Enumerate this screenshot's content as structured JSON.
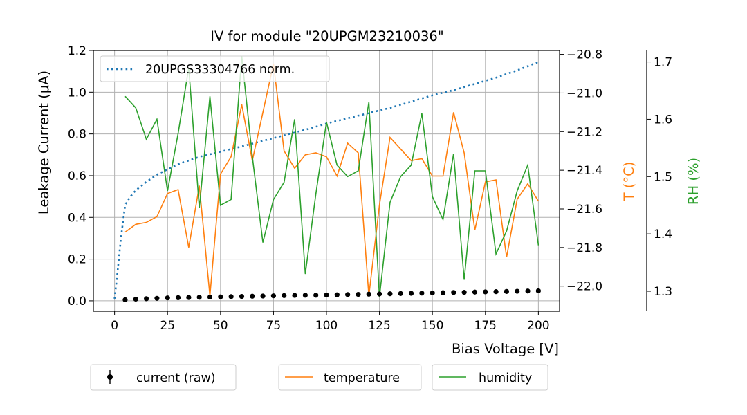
{
  "chart_data": {
    "type": "line",
    "title": "IV for module \"20UPGM23210036\"",
    "xlabel": "Bias Voltage [V]",
    "ylabel": "Leakage Current (μA)",
    "ylabel_temperature": "T (°C)",
    "ylabel_humidity": "RH (%)",
    "xlim": [
      -10,
      210
    ],
    "ylim": [
      -0.05,
      1.2
    ],
    "ylim_temperature": [
      -22.13,
      -20.78
    ],
    "ylim_humidity": [
      1.265,
      1.72
    ],
    "x_ticks": [
      0,
      25,
      50,
      75,
      100,
      125,
      150,
      175,
      200
    ],
    "y_ticks": [
      0.0,
      0.2,
      0.4,
      0.6,
      0.8,
      1.0,
      1.2
    ],
    "y_ticks_temperature": [
      -22.0,
      -21.8,
      -21.6,
      -21.4,
      -21.2,
      -21.0,
      -20.8
    ],
    "y_ticks_humidity": [
      1.3,
      1.4,
      1.5,
      1.6,
      1.7
    ],
    "x_tick_labels": [
      "0",
      "25",
      "50",
      "75",
      "100",
      "125",
      "150",
      "175",
      "200"
    ],
    "y_tick_labels": [
      "0.0",
      "0.2",
      "0.4",
      "0.6",
      "0.8",
      "1.0",
      "1.2"
    ],
    "y_tick_labels_temperature": [
      "−22.0",
      "−21.8",
      "−21.6",
      "−21.4",
      "−21.2",
      "−21.0",
      "−20.8"
    ],
    "y_tick_labels_humidity": [
      "1.3",
      "1.4",
      "1.5",
      "1.6",
      "1.7"
    ],
    "grid": true,
    "series": [
      {
        "name": "20UPGS33304766 norm.",
        "axis": "left",
        "style": "dotted",
        "color": "#1f77b4",
        "x": [
          0,
          1,
          2,
          3,
          4,
          5,
          7.5,
          10,
          15,
          20,
          25,
          30,
          40,
          50,
          60,
          75,
          90,
          100,
          110,
          120,
          130,
          140,
          150,
          160,
          170,
          180,
          190,
          200
        ],
        "y": [
          0.01,
          0.1,
          0.2,
          0.3,
          0.38,
          0.46,
          0.5,
          0.53,
          0.57,
          0.605,
          0.63,
          0.655,
          0.69,
          0.715,
          0.74,
          0.78,
          0.82,
          0.85,
          0.875,
          0.9,
          0.925,
          0.955,
          0.985,
          1.01,
          1.04,
          1.07,
          1.105,
          1.145
        ]
      },
      {
        "name": "current (raw)",
        "axis": "left",
        "style": "points",
        "color": "#000000",
        "x": [
          5,
          10,
          15,
          20,
          25,
          30,
          35,
          40,
          45,
          50,
          55,
          60,
          65,
          70,
          75,
          80,
          85,
          90,
          95,
          100,
          105,
          110,
          115,
          120,
          125,
          130,
          135,
          140,
          145,
          150,
          155,
          160,
          165,
          170,
          175,
          180,
          185,
          190,
          195,
          200
        ],
        "y": [
          0.005,
          0.008,
          0.01,
          0.012,
          0.014,
          0.015,
          0.016,
          0.017,
          0.018,
          0.019,
          0.02,
          0.021,
          0.022,
          0.023,
          0.024,
          0.025,
          0.026,
          0.027,
          0.027,
          0.028,
          0.029,
          0.03,
          0.031,
          0.032,
          0.033,
          0.034,
          0.035,
          0.036,
          0.037,
          0.038,
          0.039,
          0.04,
          0.041,
          0.042,
          0.043,
          0.044,
          0.045,
          0.046,
          0.047,
          0.048
        ]
      },
      {
        "name": "temperature",
        "axis": "temperature",
        "style": "solid",
        "color": "#ff7f0e",
        "x": [
          5,
          10,
          15,
          20,
          25,
          30,
          35,
          40,
          45,
          50,
          55,
          60,
          65,
          70,
          75,
          80,
          85,
          90,
          95,
          100,
          105,
          110,
          115,
          120,
          125,
          130,
          135,
          140,
          145,
          150,
          155,
          160,
          165,
          170,
          175,
          180,
          185,
          190,
          195,
          200
        ],
        "y": [
          -21.72,
          -21.68,
          -21.67,
          -21.64,
          -21.52,
          -21.5,
          -21.8,
          -21.48,
          -22.05,
          -21.42,
          -21.33,
          -21.06,
          -21.35,
          -21.1,
          -20.85,
          -21.3,
          -21.39,
          -21.32,
          -21.31,
          -21.33,
          -21.43,
          -21.26,
          -21.31,
          -22.05,
          -21.58,
          -21.23,
          -21.29,
          -21.35,
          -21.34,
          -21.43,
          -21.43,
          -21.1,
          -21.31,
          -21.71,
          -21.46,
          -21.45,
          -21.85,
          -21.55,
          -21.47,
          -21.56
        ]
      },
      {
        "name": "humidity",
        "axis": "humidity",
        "style": "solid",
        "color": "#2ca02c",
        "x": [
          5,
          10,
          15,
          20,
          25,
          30,
          35,
          40,
          45,
          50,
          55,
          60,
          65,
          70,
          75,
          80,
          85,
          90,
          95,
          100,
          105,
          110,
          115,
          120,
          125,
          130,
          135,
          140,
          145,
          150,
          155,
          160,
          165,
          170,
          175,
          180,
          185,
          190,
          195,
          200
        ],
        "y": [
          1.64,
          1.62,
          1.565,
          1.6,
          1.475,
          1.575,
          1.69,
          1.445,
          1.64,
          1.45,
          1.46,
          1.71,
          1.535,
          1.385,
          1.46,
          1.49,
          1.6,
          1.33,
          1.47,
          1.595,
          1.52,
          1.5,
          1.51,
          1.63,
          1.29,
          1.455,
          1.5,
          1.52,
          1.61,
          1.465,
          1.425,
          1.54,
          1.32,
          1.51,
          1.51,
          1.365,
          1.405,
          1.475,
          1.52,
          1.38
        ]
      }
    ],
    "legends": {
      "top": [
        "20UPGS33304766 norm."
      ],
      "bottom": [
        "current (raw)",
        "temperature",
        "humidity"
      ]
    }
  }
}
